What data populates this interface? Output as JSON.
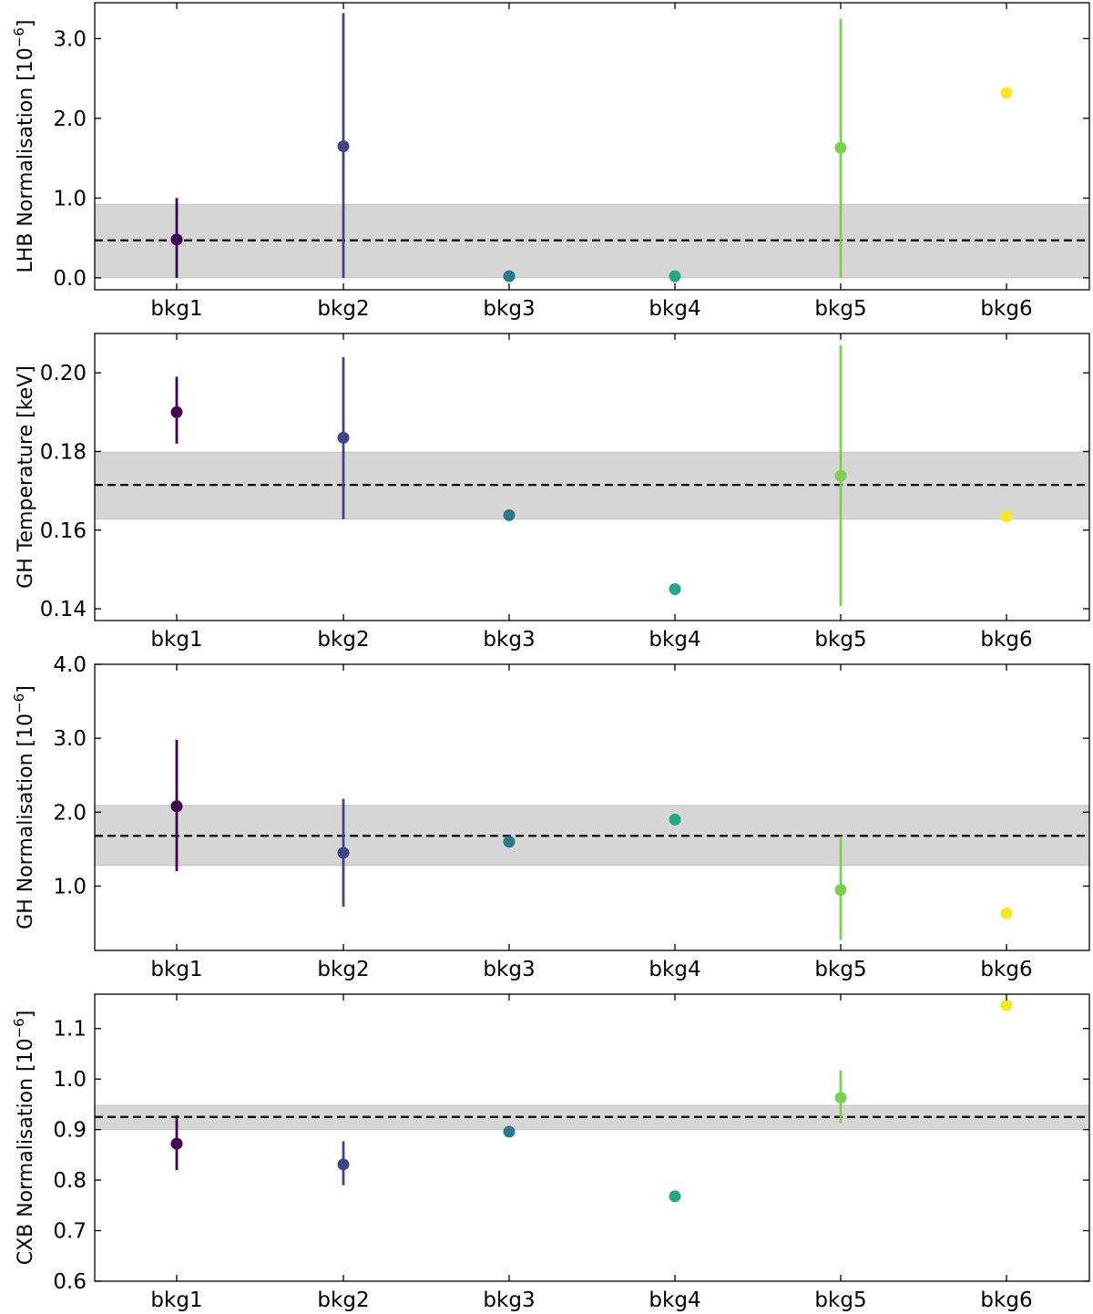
{
  "chart_data": [
    {
      "type": "scatter",
      "ylabel_main": "LHB Normalisation [10",
      "ylabel_exp": "−6",
      "ylabel_close": "]",
      "categories": [
        "bkg1",
        "bkg2",
        "bkg3",
        "bkg4",
        "bkg5",
        "bkg6"
      ],
      "ylim": [
        -0.15,
        3.45
      ],
      "yticks": [
        0.0,
        1.0,
        2.0,
        3.0
      ],
      "ytick_labels": [
        "0.0",
        "1.0",
        "2.0",
        "3.0"
      ],
      "values": [
        0.48,
        1.65,
        0.02,
        0.02,
        1.63,
        2.32
      ],
      "err_low": [
        0.0,
        0.0,
        null,
        null,
        0.0,
        null
      ],
      "err_high": [
        1.0,
        3.32,
        null,
        null,
        3.25,
        null
      ],
      "mean": 0.47,
      "band": [
        0.0,
        0.92
      ]
    },
    {
      "type": "scatter",
      "ylabel_main": "GH Temperature [keV]",
      "ylabel_exp": "",
      "ylabel_close": "",
      "categories": [
        "bkg1",
        "bkg2",
        "bkg3",
        "bkg4",
        "bkg5",
        "bkg6"
      ],
      "ylim": [
        0.137,
        0.21
      ],
      "yticks": [
        0.14,
        0.16,
        0.18,
        0.2
      ],
      "ytick_labels": [
        "0.14",
        "0.16",
        "0.18",
        "0.20"
      ],
      "values": [
        0.19,
        0.1835,
        0.1638,
        0.145,
        0.1738,
        0.1635
      ],
      "err_low": [
        0.182,
        0.1628,
        null,
        null,
        0.1407,
        null
      ],
      "err_high": [
        0.199,
        0.204,
        null,
        null,
        0.207,
        null
      ],
      "mean": 0.1715,
      "band": [
        0.1628,
        0.1798
      ]
    },
    {
      "type": "scatter",
      "ylabel_main": "GH Normalisation [10",
      "ylabel_exp": "−6",
      "ylabel_close": "]",
      "categories": [
        "bkg1",
        "bkg2",
        "bkg3",
        "bkg4",
        "bkg5",
        "bkg6"
      ],
      "ylim": [
        0.13,
        4.0
      ],
      "yticks": [
        1.0,
        2.0,
        3.0,
        4.0
      ],
      "ytick_labels": [
        "1.0",
        "2.0",
        "3.0",
        "4.0"
      ],
      "values": [
        2.08,
        1.45,
        1.6,
        1.9,
        0.95,
        0.63
      ],
      "err_low": [
        1.2,
        0.72,
        null,
        null,
        0.27,
        null
      ],
      "err_high": [
        2.98,
        2.18,
        null,
        null,
        1.65,
        null
      ],
      "mean": 1.68,
      "band": [
        1.28,
        2.09
      ]
    },
    {
      "type": "scatter",
      "ylabel_main": "CXB Normalisation [10",
      "ylabel_exp": "−6",
      "ylabel_close": "]",
      "categories": [
        "bkg1",
        "bkg2",
        "bkg3",
        "bkg4",
        "bkg5",
        "bkg6"
      ],
      "ylim": [
        0.6,
        1.168
      ],
      "yticks": [
        0.6,
        0.7,
        0.8,
        0.9,
        1.0,
        1.1
      ],
      "ytick_labels": [
        "0.6",
        "0.7",
        "0.8",
        "0.9",
        "1.0",
        "1.1"
      ],
      "values": [
        0.872,
        0.831,
        0.896,
        0.768,
        0.963,
        1.146
      ],
      "err_low": [
        0.82,
        0.79,
        null,
        null,
        0.912,
        null
      ],
      "err_high": [
        0.928,
        0.877,
        null,
        null,
        1.017,
        null
      ],
      "mean": 0.925,
      "band": [
        0.9,
        0.948
      ]
    }
  ],
  "colors": {
    "points": [
      "#440154",
      "#414487",
      "#2a788e",
      "#22a884",
      "#7ad151",
      "#fde725"
    ],
    "band": "#d6d6d6",
    "mean_line": "#000000"
  }
}
